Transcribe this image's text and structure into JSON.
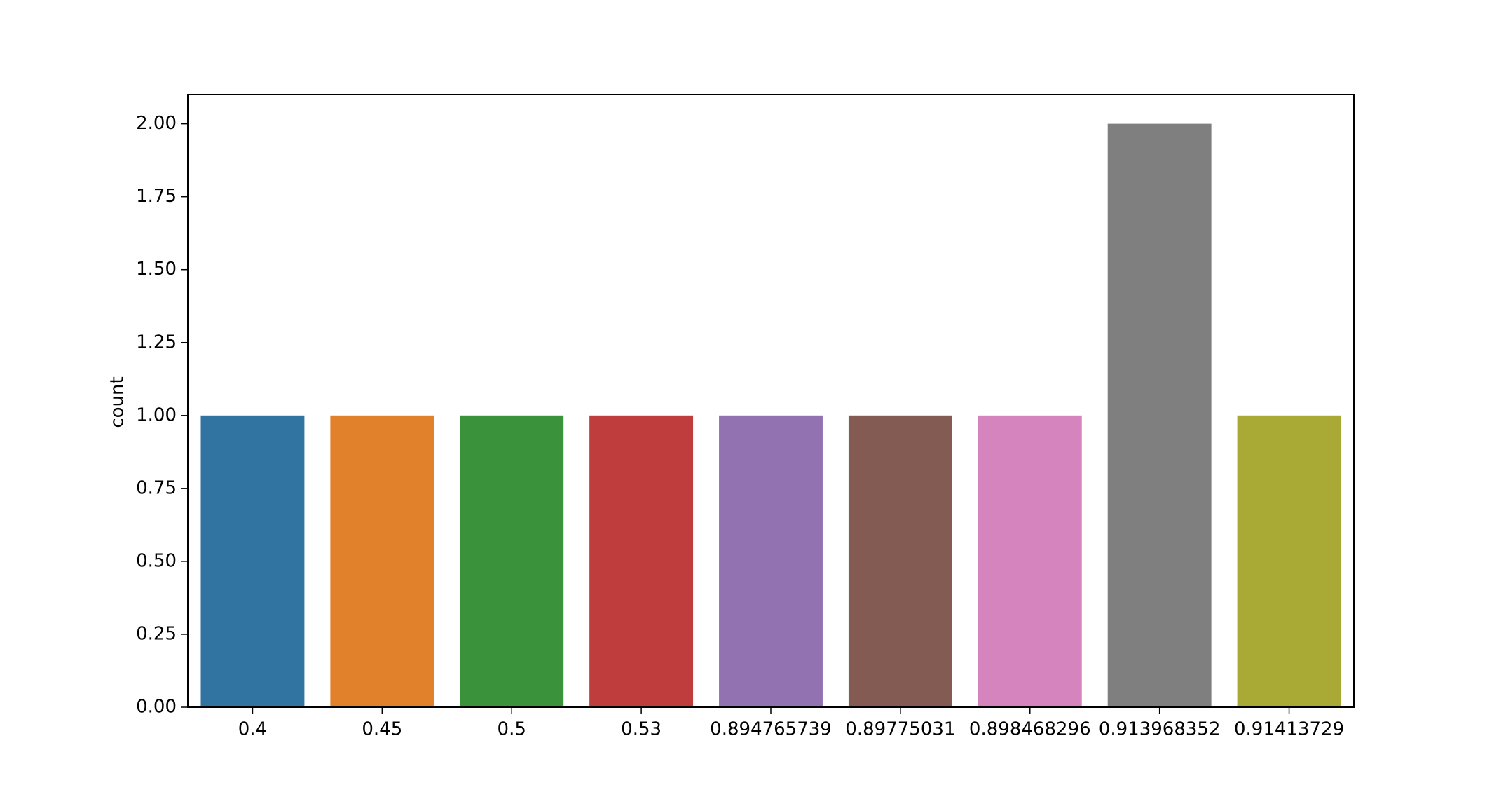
{
  "chart_data": {
    "type": "bar",
    "y_label": "count",
    "categories": [
      "0.4",
      "0.45",
      "0.5",
      "0.53",
      "0.894765739",
      "0.89775031",
      "0.898468296",
      "0.913968352",
      "0.91413729"
    ],
    "values": [
      1,
      1,
      1,
      1,
      1,
      1,
      1,
      2,
      1
    ],
    "colors": [
      "#3274a1",
      "#e1812c",
      "#3a923a",
      "#c03d3e",
      "#9372b2",
      "#845b53",
      "#d684bd",
      "#7f7f7f",
      "#a9aa35"
    ],
    "ylim": [
      0,
      2.1
    ],
    "yticks": [
      {
        "value": 0,
        "label": "0.00"
      },
      0.25,
      {
        "value": 0.5,
        "label": "0.50"
      },
      0.75,
      {
        "value": 1,
        "label": "1.00"
      },
      1.25,
      {
        "value": 1.5,
        "label": "1.50"
      },
      1.75,
      {
        "value": 2,
        "label": "2.00"
      }
    ],
    "grid": false
  }
}
